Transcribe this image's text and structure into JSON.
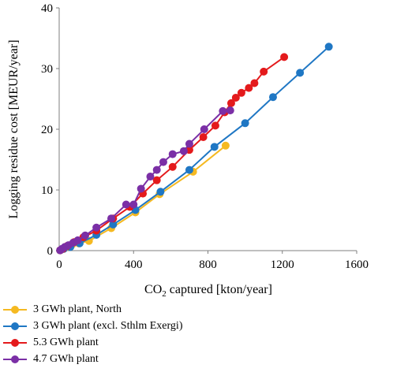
{
  "chart_data": {
    "type": "line",
    "xlabel_main": "CO",
    "xlabel_sub": "2",
    "xlabel_rest": " captured [kton/year]",
    "ylabel": "Logging residue cost [MEUR/year]",
    "xlim": [
      0,
      1600
    ],
    "ylim": [
      0,
      40
    ],
    "xticks": [
      "0",
      "400",
      "800",
      "1200",
      "1600"
    ],
    "yticks": [
      "0",
      "10",
      "20",
      "30",
      "40"
    ],
    "grid": false,
    "legend": "bottom",
    "series": [
      {
        "name": "3 GWh plant, North",
        "color": "#f5b921",
        "points": [
          [
            5,
            0.05
          ],
          [
            20,
            0.3
          ],
          [
            40,
            0.6
          ],
          [
            70,
            1.0
          ],
          [
            105,
            1.2
          ],
          [
            160,
            1.6
          ],
          [
            280,
            3.7
          ],
          [
            410,
            6.3
          ],
          [
            540,
            9.3
          ],
          [
            720,
            13.0
          ],
          [
            895,
            17.3
          ]
        ]
      },
      {
        "name": "3 GWh plant (excl. Sthlm Exergi)",
        "color": "#1f77c4",
        "points": [
          [
            5,
            0.05
          ],
          [
            25,
            0.3
          ],
          [
            60,
            0.6
          ],
          [
            110,
            1.2
          ],
          [
            200,
            2.6
          ],
          [
            290,
            4.3
          ],
          [
            410,
            6.7
          ],
          [
            545,
            9.7
          ],
          [
            700,
            13.3
          ],
          [
            835,
            17.1
          ],
          [
            1000,
            21.0
          ],
          [
            1150,
            25.3
          ],
          [
            1295,
            29.3
          ],
          [
            1450,
            33.6
          ]
        ]
      },
      {
        "name": "5.3 GWh plant",
        "color": "#e41a1c",
        "points": [
          [
            5,
            0.05
          ],
          [
            20,
            0.3
          ],
          [
            45,
            0.8
          ],
          [
            80,
            1.4
          ],
          [
            130,
            2.2
          ],
          [
            200,
            3.3
          ],
          [
            290,
            5.3
          ],
          [
            380,
            7.2
          ],
          [
            450,
            9.4
          ],
          [
            525,
            11.6
          ],
          [
            610,
            13.8
          ],
          [
            700,
            16.6
          ],
          [
            775,
            18.7
          ],
          [
            840,
            20.6
          ],
          [
            890,
            22.8
          ],
          [
            925,
            24.3
          ],
          [
            950,
            25.2
          ],
          [
            980,
            26.0
          ],
          [
            1020,
            26.8
          ],
          [
            1050,
            27.6
          ],
          [
            1100,
            29.5
          ],
          [
            1210,
            31.9
          ]
        ]
      },
      {
        "name": "4.7 GWh plant",
        "color": "#7b2fa6",
        "points": [
          [
            5,
            0.05
          ],
          [
            15,
            0.3
          ],
          [
            30,
            0.6
          ],
          [
            50,
            0.9
          ],
          [
            75,
            1.3
          ],
          [
            100,
            1.7
          ],
          [
            140,
            2.5
          ],
          [
            200,
            3.8
          ],
          [
            280,
            5.3
          ],
          [
            360,
            7.6
          ],
          [
            400,
            7.6
          ],
          [
            440,
            10.2
          ],
          [
            490,
            12.2
          ],
          [
            525,
            13.3
          ],
          [
            560,
            14.6
          ],
          [
            610,
            15.9
          ],
          [
            670,
            16.4
          ],
          [
            700,
            17.6
          ],
          [
            780,
            20.0
          ],
          [
            880,
            23.0
          ],
          [
            920,
            23.1
          ]
        ]
      }
    ]
  }
}
